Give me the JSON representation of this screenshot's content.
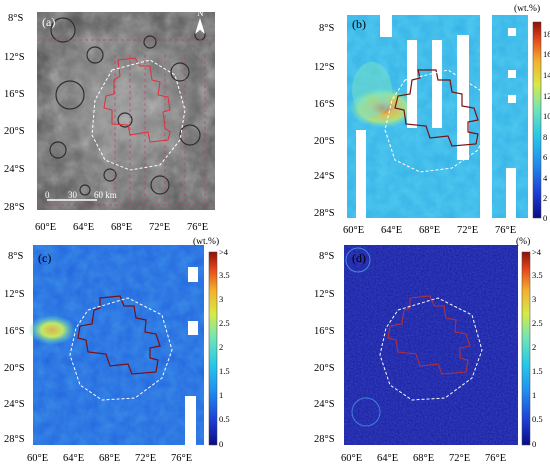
{
  "lon_ticks": [
    "60°E",
    "64°E",
    "68°E",
    "72°E",
    "76°E"
  ],
  "lat_ticks": [
    "8°S",
    "12°S",
    "16°S",
    "20°S",
    "24°S",
    "28°S"
  ],
  "panels": [
    {
      "letter": "(a)",
      "type": "image",
      "north_arrow": "N",
      "scale_labels": [
        "0",
        "30",
        "60 km"
      ],
      "colors": {
        "base": "#7f7f7f",
        "boundary": "#e2303a",
        "outline": "#ffffff"
      }
    },
    {
      "letter": "(b)",
      "unit": "(wt.%)",
      "colorbar": {
        "ticks": [
          "18",
          "16",
          "14",
          "12",
          "10",
          "8",
          "6",
          "4",
          "2",
          "0"
        ]
      }
    },
    {
      "letter": "(c)",
      "unit": "(wt.%)",
      "colorbar": {
        "ticks": [
          ">4",
          "3.5",
          "3",
          "2.5",
          "2",
          "1.5",
          "1",
          "0.5",
          "0"
        ]
      }
    },
    {
      "letter": "(d)",
      "unit": "(%)",
      "colorbar": {
        "ticks": [
          ">4",
          "3.5",
          "3",
          "2.5",
          "2",
          "1.5",
          "1",
          "0.5",
          "0"
        ]
      }
    }
  ],
  "colormap": {
    "stops": [
      "#0b0b85",
      "#1d3fd6",
      "#1f8ff0",
      "#26c9e8",
      "#73e6b3",
      "#d6ea45",
      "#f5b02c",
      "#e4481b",
      "#8e1009"
    ]
  }
}
